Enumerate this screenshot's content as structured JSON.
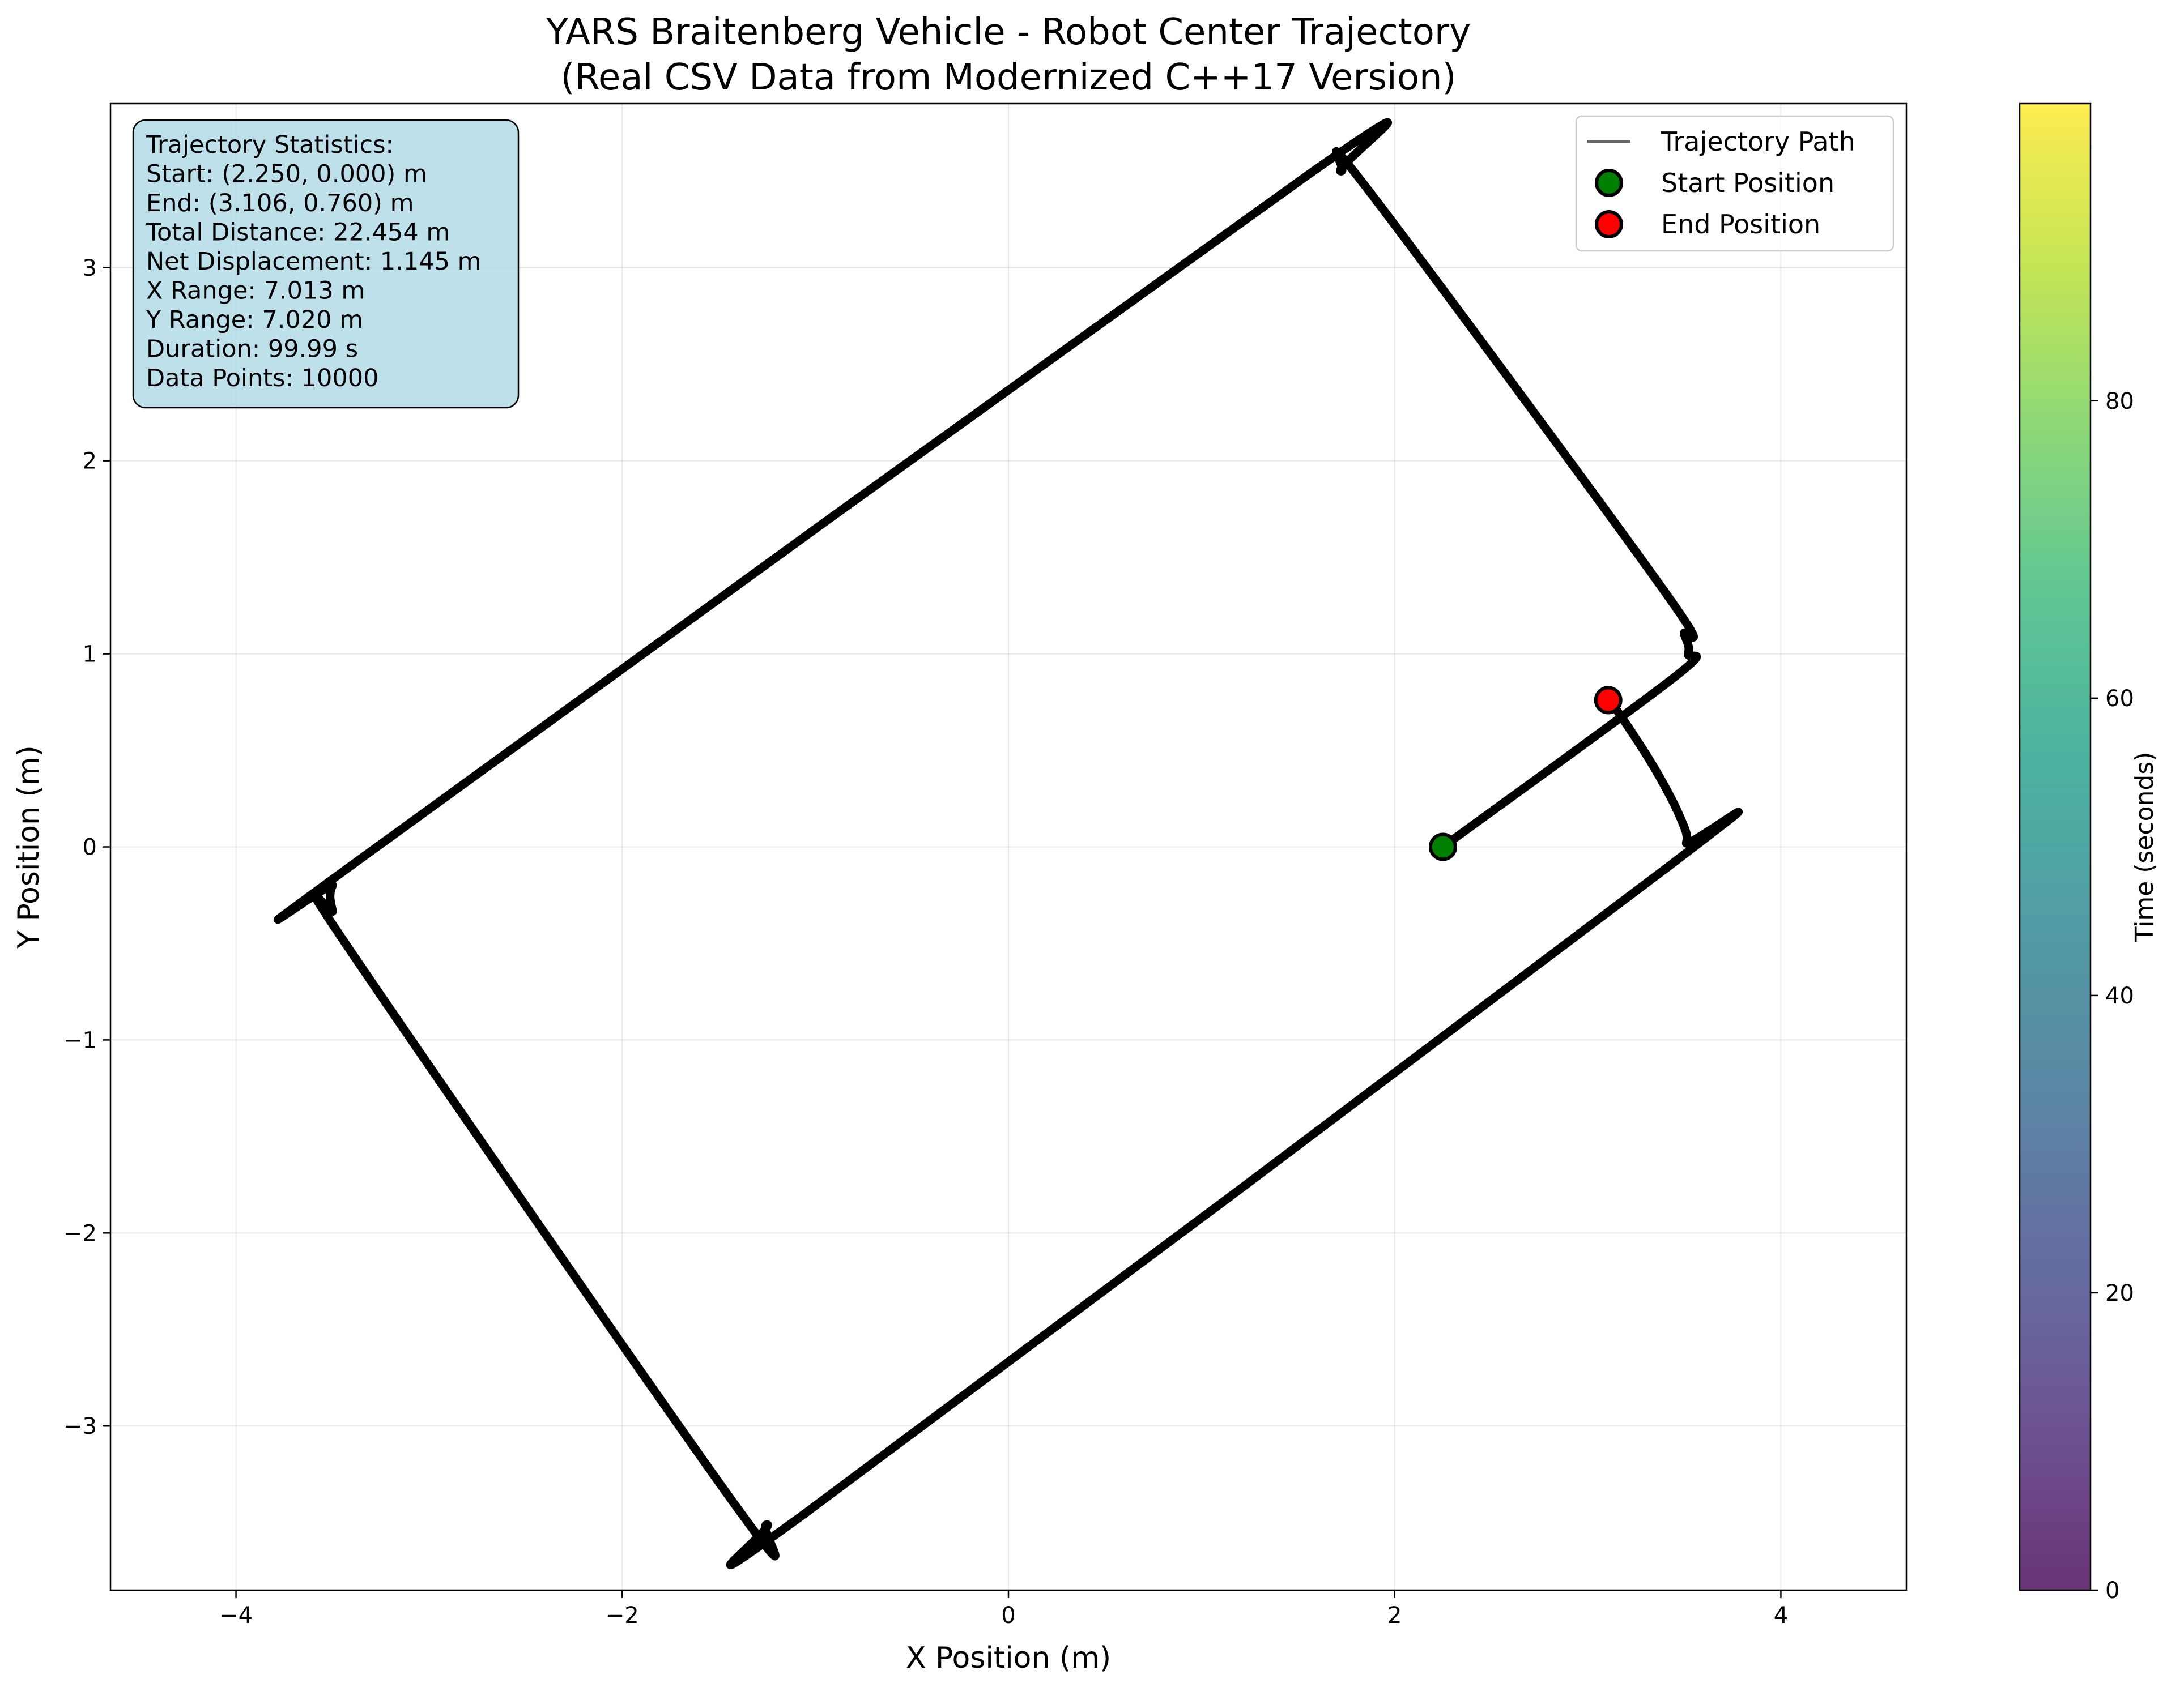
{
  "chart_data": {
    "type": "line",
    "title": [
      "YARS Braitenberg Vehicle - Robot Center Trajectory",
      "(Real CSV Data from Modernized C++17 Version)"
    ],
    "xlabel": "X Position (m)",
    "ylabel": "Y Position (m)",
    "xlim": [
      -4.65,
      4.65
    ],
    "ylim": [
      -3.85,
      3.85
    ],
    "xticks": [
      -4,
      -2,
      0,
      2,
      4
    ],
    "xtick_labels": [
      "−4",
      "−2",
      "0",
      "2",
      "4"
    ],
    "yticks": [
      -3,
      -2,
      -1,
      0,
      1,
      2,
      3
    ],
    "ytick_labels": [
      "−3",
      "−2",
      "−1",
      "0",
      "1",
      "2",
      "3"
    ],
    "grid": true,
    "legend_position": "top-right",
    "legend": [
      "Trajectory Path",
      "Start Position",
      "End Position"
    ],
    "series": [
      {
        "name": "Trajectory Path",
        "color": "#000000",
        "x": [
          2.25,
          3.45,
          3.52,
          3.5,
          3.4,
          1.85,
          1.72,
          1.55,
          -3.38,
          -3.5,
          -3.5,
          -3.42,
          -1.4,
          -1.25,
          -1.05,
          3.42,
          3.51,
          3.48,
          3.35,
          3.17,
          3.106
        ],
        "y": [
          0.0,
          0.88,
          1.0,
          1.1,
          1.32,
          3.42,
          3.5,
          3.48,
          -0.08,
          -0.2,
          -0.33,
          -0.52,
          -3.43,
          -3.51,
          -3.45,
          -0.1,
          0.02,
          0.15,
          0.4,
          0.68,
          0.76
        ]
      }
    ],
    "start": {
      "label": "Start Position",
      "x": 2.25,
      "y": 0.0,
      "color": "#008000"
    },
    "end": {
      "label": "End Position",
      "x": 3.106,
      "y": 0.76,
      "color": "#ff0000"
    },
    "colorbar": {
      "label": "Time (seconds)",
      "range": [
        0,
        99.99
      ],
      "ticks": [
        0,
        20,
        40,
        60,
        80
      ],
      "tick_labels": [
        "0",
        "20",
        "40",
        "60",
        "80"
      ],
      "colors": [
        "#440154",
        "#482878",
        "#3e4989",
        "#31688e",
        "#26828e",
        "#1f9e89",
        "#35b779",
        "#6ece58",
        "#b5de2b",
        "#fde725"
      ]
    },
    "stats": {
      "heading": "Trajectory Statistics:",
      "lines": [
        "Start: (2.250, 0.000) m",
        "End: (3.106, 0.760) m",
        "Total Distance: 22.454 m",
        "Net Displacement: 1.145 m",
        "X Range: 7.013 m",
        "Y Range: 7.020 m",
        "Duration: 99.99 s",
        "Data Points: 10000"
      ],
      "background": "#add8e6"
    }
  }
}
